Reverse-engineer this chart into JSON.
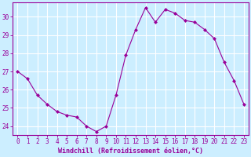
{
  "x": [
    0,
    1,
    2,
    3,
    4,
    5,
    6,
    7,
    8,
    9,
    10,
    11,
    12,
    13,
    14,
    15,
    16,
    17,
    18,
    19,
    20,
    21,
    22,
    23
  ],
  "y": [
    27.0,
    26.6,
    25.7,
    25.2,
    24.8,
    24.6,
    24.5,
    24.0,
    23.7,
    24.0,
    25.7,
    27.9,
    29.3,
    30.5,
    29.7,
    30.4,
    30.2,
    29.8,
    29.7,
    29.3,
    28.8,
    27.5,
    26.5,
    25.2
  ],
  "line_color": "#990099",
  "marker": "D",
  "marker_size": 2.0,
  "bg_color": "#cceeff",
  "grid_color": "#ffffff",
  "xlabel": "Windchill (Refroidissement éolien,°C)",
  "xlabel_color": "#990099",
  "tick_color": "#990099",
  "ylim": [
    23.5,
    30.8
  ],
  "yticks": [
    24,
    25,
    26,
    27,
    28,
    29,
    30
  ],
  "xticks": [
    0,
    1,
    2,
    3,
    4,
    5,
    6,
    7,
    8,
    9,
    10,
    11,
    12,
    13,
    14,
    15,
    16,
    17,
    18,
    19,
    20,
    21,
    22,
    23
  ],
  "spine_color": "#990099",
  "tick_fontsize": 5.5,
  "xlabel_fontsize": 6.0,
  "linewidth": 0.8
}
